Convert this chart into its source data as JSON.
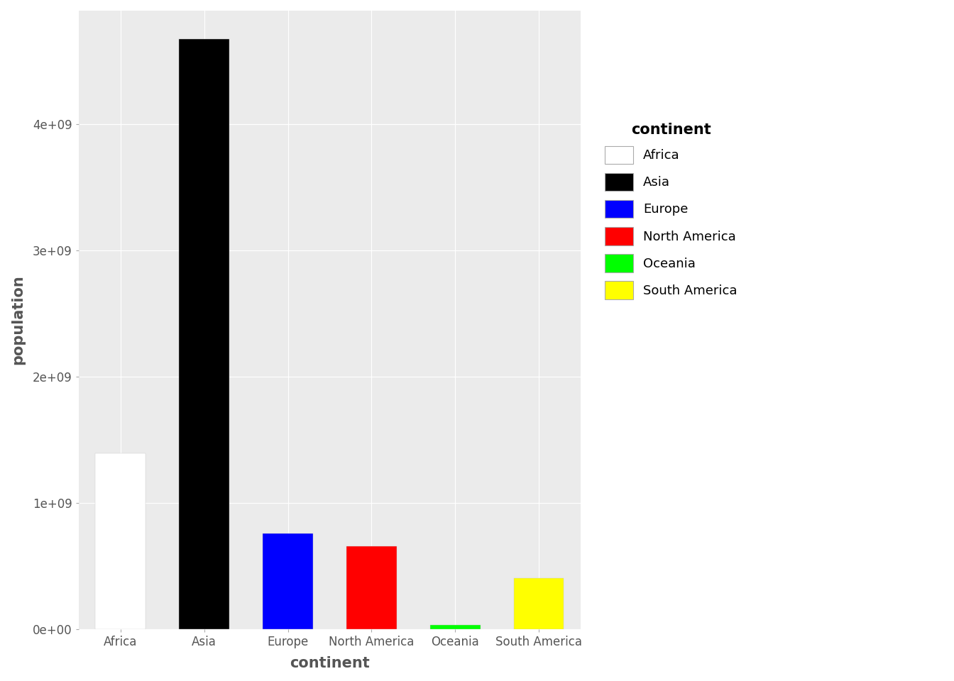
{
  "categories": [
    "Africa",
    "Asia",
    "Europe",
    "North America",
    "Oceania",
    "South America"
  ],
  "values": [
    1395380000,
    4674700000,
    757240000,
    657460000,
    33960000,
    403640000
  ],
  "colors": [
    "#ffffff",
    "#000000",
    "#0000ff",
    "#ff0000",
    "#00ff00",
    "#ffff00"
  ],
  "bar_edge_color": "#c8c8c8",
  "bar_edge_width": 0.3,
  "xlabel": "continent",
  "ylabel": "population",
  "legend_title": "continent",
  "legend_labels": [
    "Africa",
    "Asia",
    "Europe",
    "North America",
    "Oceania",
    "South America"
  ],
  "legend_colors": [
    "#ffffff",
    "#000000",
    "#0000ff",
    "#ff0000",
    "#00ff00",
    "#ffff00"
  ],
  "background_color": "#ebebeb",
  "panel_background": "#ebebeb",
  "legend_background": "#ffffff",
  "grid_color": "#ffffff",
  "ylim_max": 4900000000,
  "ytick_values": [
    0,
    1000000000,
    2000000000,
    3000000000,
    4000000000
  ],
  "xlabel_fontsize": 15,
  "ylabel_fontsize": 15,
  "tick_fontsize": 12,
  "legend_title_fontsize": 15,
  "legend_fontsize": 13,
  "axis_text_color": "#555555",
  "legend_text_color": "#000000",
  "legend_title_color": "#000000"
}
